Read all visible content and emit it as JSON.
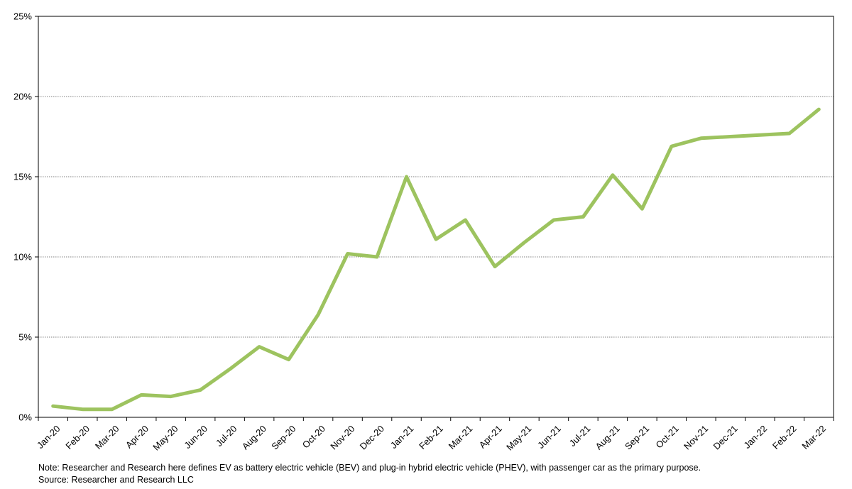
{
  "chart_data": {
    "type": "line",
    "title": "",
    "xlabel": "",
    "ylabel": "",
    "categories": [
      "Jan-20",
      "Feb-20",
      "Mar-20",
      "Apr-20",
      "May-20",
      "Jun-20",
      "Jul-20",
      "Aug-20",
      "Sep-20",
      "Oct-20",
      "Nov-20",
      "Dec-20",
      "Jan-21",
      "Feb-21",
      "Mar-21",
      "Apr-21",
      "May-21",
      "Jun-21",
      "Jul-21",
      "Aug-21",
      "Sep-21",
      "Oct-21",
      "Nov-21",
      "Dec-21",
      "Jan-22",
      "Feb-22",
      "Mar-22"
    ],
    "series": [
      {
        "values": [
          0.7,
          0.5,
          0.5,
          1.4,
          1.3,
          1.7,
          3.0,
          4.4,
          3.6,
          6.4,
          10.2,
          10.0,
          15.0,
          11.1,
          12.3,
          9.4,
          10.9,
          12.3,
          12.5,
          15.1,
          13.0,
          16.9,
          17.4,
          17.5,
          17.6,
          17.7,
          19.2
        ],
        "color": "#9dc35f"
      }
    ],
    "ylim": [
      0,
      25
    ],
    "yticks": [
      0,
      5,
      10,
      15,
      20,
      25
    ],
    "ytick_labels": [
      "0%",
      "5%",
      "10%",
      "15%",
      "20%",
      "25%"
    ],
    "grid": "horizontal dotted",
    "legend": "none"
  },
  "notes": {
    "note": "Note:  Researcher and Research here defines EV as battery electric vehicle (BEV) and plug-in hybrid electric vehicle (PHEV), with passenger car as the primary purpose.",
    "source": "Source: Researcher and Research LLC"
  }
}
